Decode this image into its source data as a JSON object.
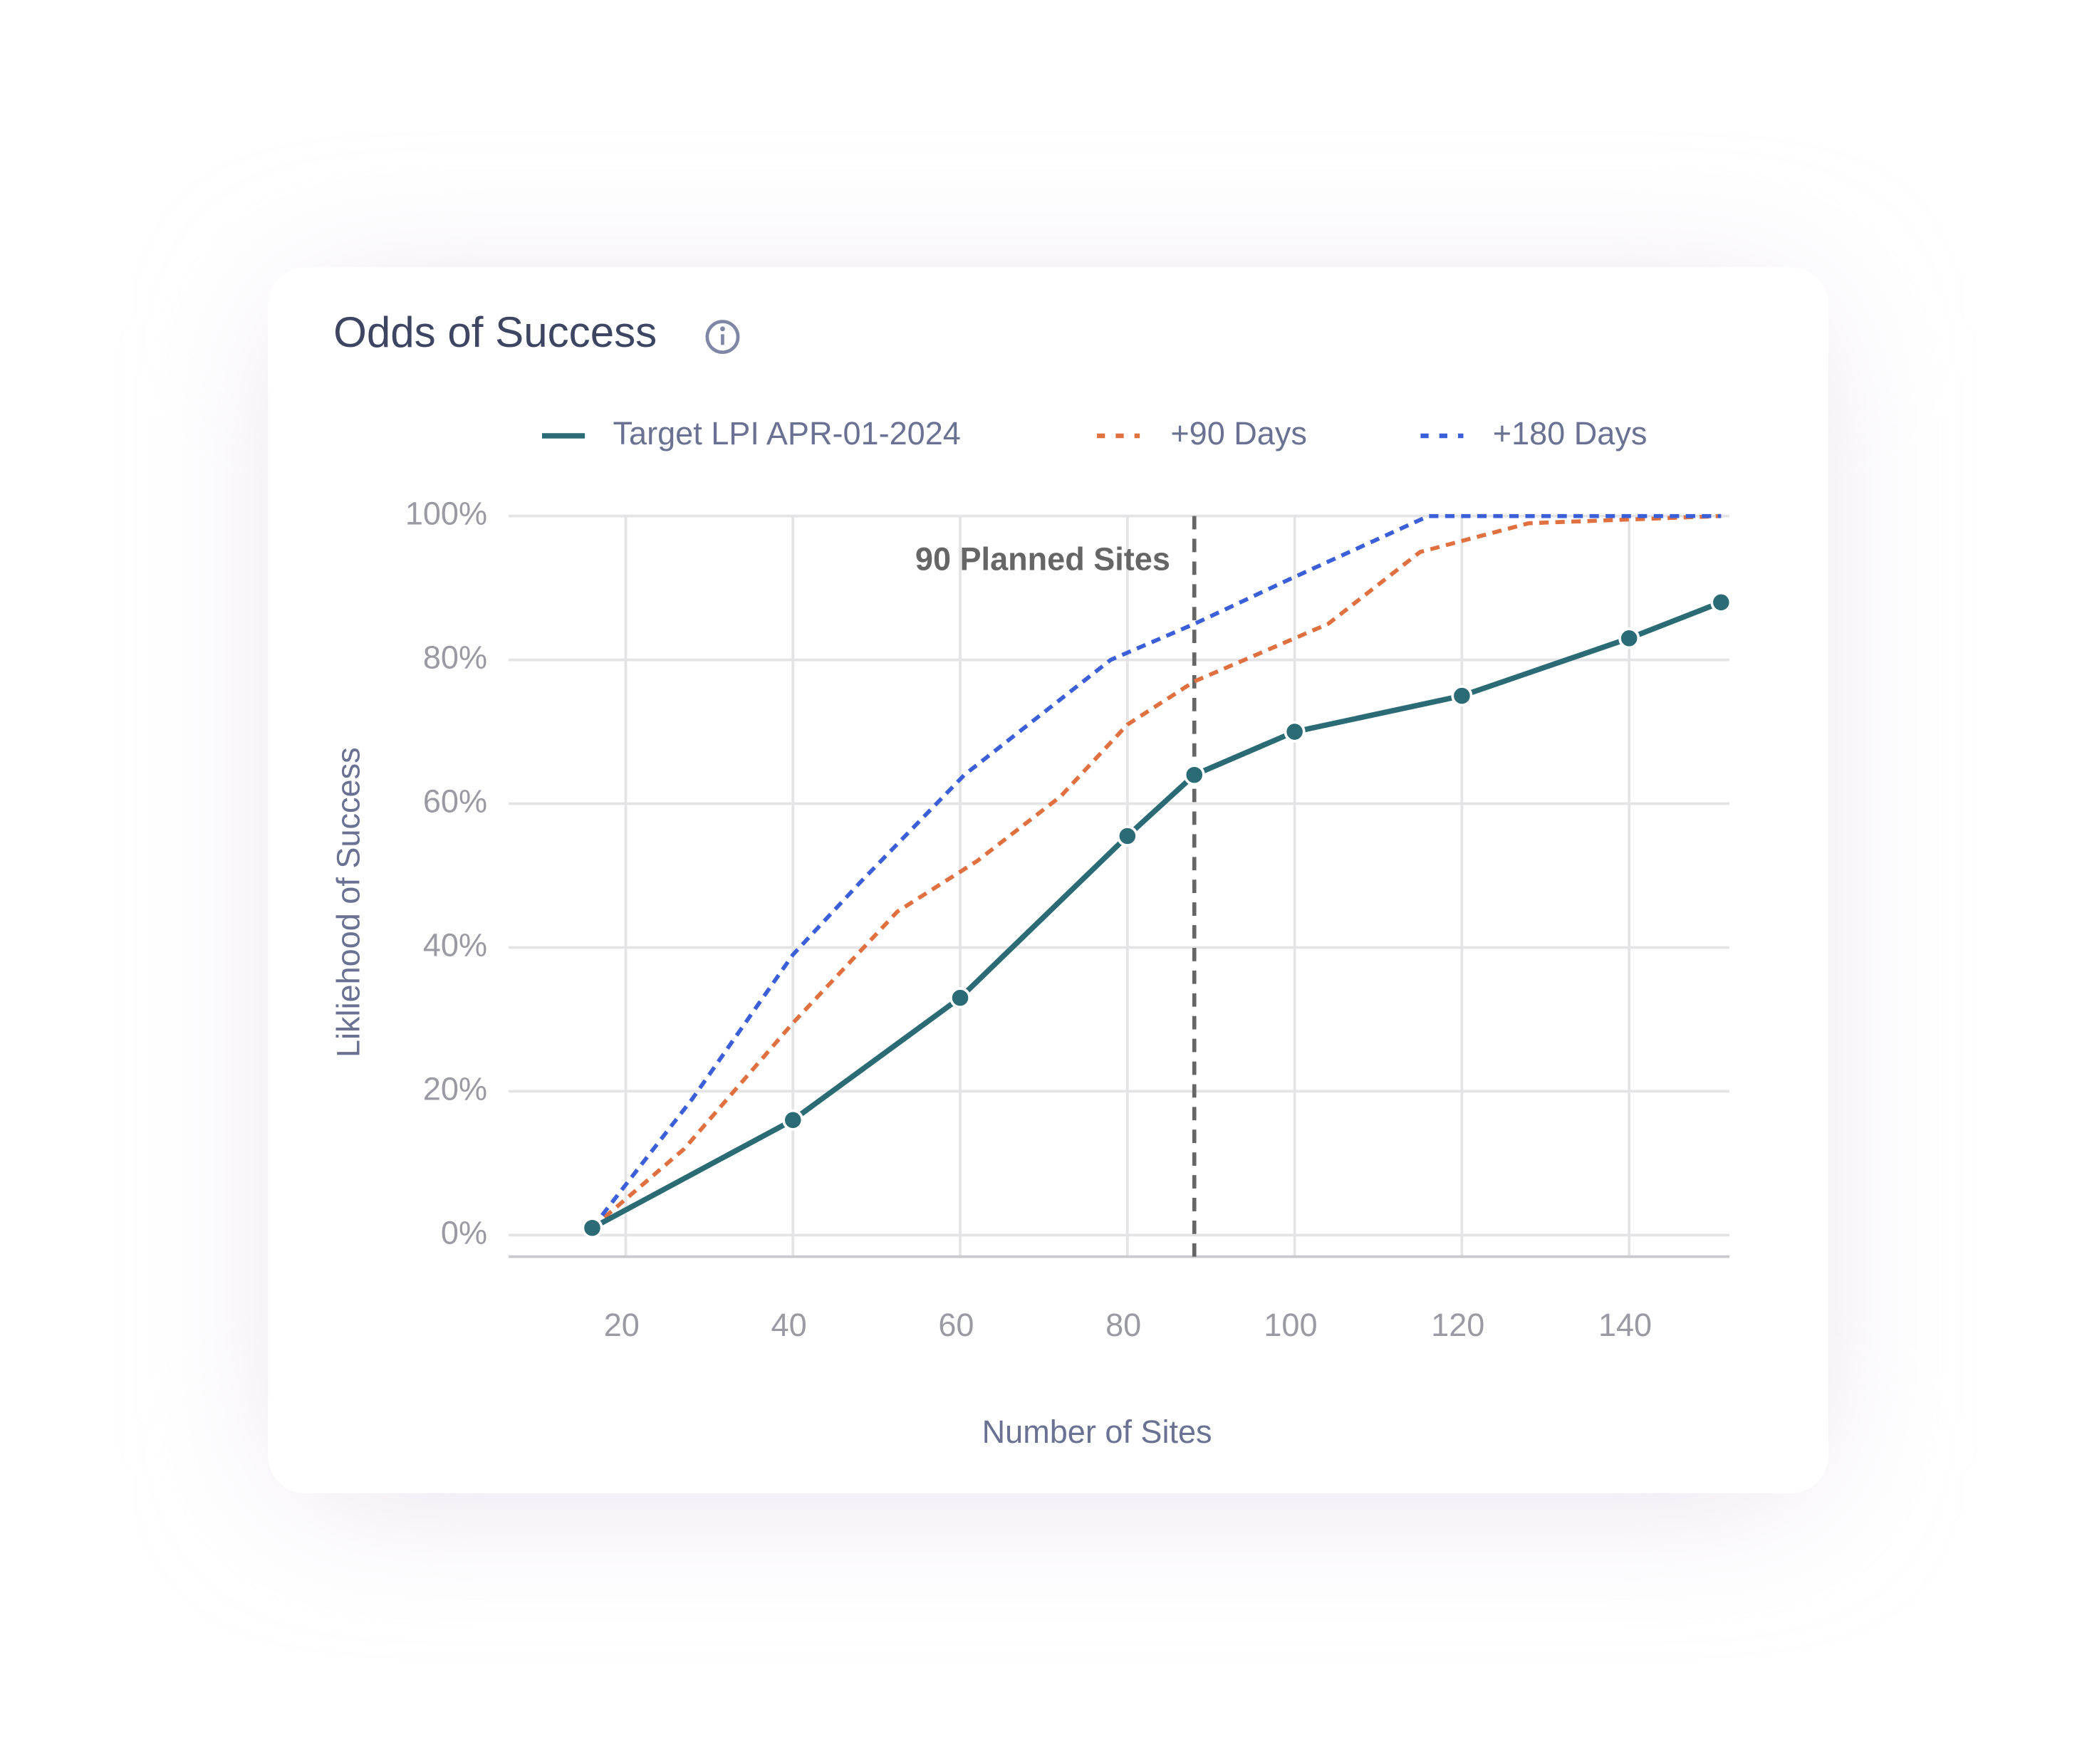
{
  "chart_data": {
    "type": "line",
    "title": "Odds of Success",
    "xlabel": "Number of Sites",
    "ylabel": "Likliehood of Success",
    "xlim": [
      6,
      152
    ],
    "ylim": [
      -3,
      100
    ],
    "xticks": [
      20,
      40,
      60,
      80,
      100,
      120,
      140
    ],
    "yticks": [
      {
        "value": 0,
        "label": "0%"
      },
      {
        "value": 20,
        "label": "20%"
      },
      {
        "value": 40,
        "label": "40%"
      },
      {
        "value": 60,
        "label": "60%"
      },
      {
        "value": 80,
        "label": "80%"
      },
      {
        "value": 100,
        "label": "100%"
      }
    ],
    "grid": true,
    "annotation": {
      "text": "90 Planned Sites",
      "x": 88
    },
    "series": [
      {
        "name": "Target LPI APR-01-2024",
        "color": "#2b6b75",
        "style": "solid",
        "markers": true,
        "x": [
          16,
          40,
          60,
          80,
          88,
          100,
          120,
          140,
          151
        ],
        "values": [
          1,
          16,
          33,
          55.5,
          64,
          70,
          75,
          83,
          88
        ]
      },
      {
        "name": "+90 Days",
        "color": "#e0703f",
        "style": "dotted",
        "markers": false,
        "x": [
          16,
          27,
          40,
          52.5,
          62,
          72,
          80,
          88,
          104,
          115,
          128,
          151
        ],
        "values": [
          1,
          12,
          29.5,
          45,
          52,
          61,
          71,
          77,
          85,
          95,
          99,
          100
        ]
      },
      {
        "name": "+180 Days",
        "color": "#3a5fd9",
        "style": "dotted",
        "markers": false,
        "x": [
          16,
          28,
          40,
          48,
          60.5,
          78,
          88,
          99,
          116,
          151
        ],
        "values": [
          1,
          19,
          39,
          49,
          64,
          80,
          85,
          91,
          100,
          100
        ]
      }
    ]
  }
}
